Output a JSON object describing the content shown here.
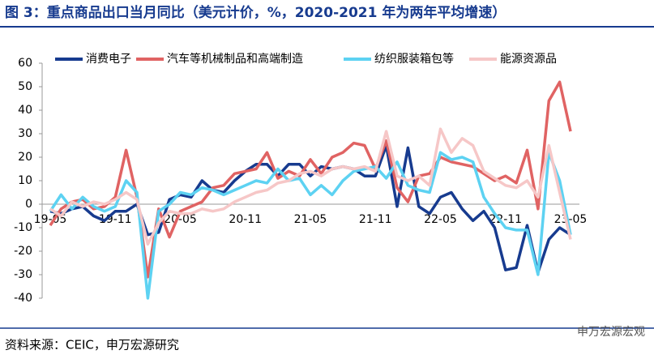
{
  "chart_data": {
    "type": "line",
    "title": "图 3：重点商品出口当月同比（美元计价，%，2020-2021 年为两年平均增速）",
    "source": "资料来源：CEIC，申万宏源研究",
    "watermark": "申万宏源宏观",
    "categories": [
      "19-05",
      null,
      null,
      null,
      null,
      null,
      "19-11",
      null,
      null,
      null,
      null,
      null,
      "20-05",
      null,
      null,
      null,
      null,
      null,
      "20-11",
      null,
      null,
      null,
      null,
      null,
      "21-05",
      null,
      null,
      null,
      null,
      null,
      "21-11",
      null,
      null,
      null,
      null,
      null,
      "22-05",
      null,
      null,
      null,
      null,
      null,
      "22-11",
      null,
      null,
      null,
      null,
      null,
      "23-05"
    ],
    "series": [
      {
        "name": "消费电子",
        "color": "#173b8f",
        "values": [
          -3,
          -4,
          -2,
          -1,
          -5,
          -7,
          -3,
          -3,
          0,
          -13,
          -12,
          2,
          4,
          3,
          10,
          6,
          5,
          10,
          14,
          17,
          17,
          12,
          17,
          17,
          12,
          16,
          15,
          16,
          15,
          12,
          12,
          25,
          -1,
          24,
          -1,
          -4,
          3,
          5,
          -2,
          -7,
          -3,
          -10,
          -28,
          -27,
          -9,
          -29,
          -15,
          -10,
          -13
        ]
      },
      {
        "name": "汽车等机械制品和高端制造",
        "color": "#e06363",
        "values": [
          -9,
          -2,
          1,
          2,
          -2,
          -1,
          3,
          23,
          3,
          -31,
          -2,
          -14,
          -3,
          -1,
          1,
          7,
          8,
          13,
          14,
          15,
          22,
          11,
          14,
          12,
          19,
          13,
          20,
          22,
          26,
          25,
          15,
          27,
          7,
          1,
          12,
          13,
          20,
          18,
          17,
          16,
          13,
          10,
          12,
          9,
          23,
          -2,
          44,
          52,
          31
        ]
      },
      {
        "name": "纺织服装箱包等",
        "color": "#5dd2f2",
        "values": [
          -3,
          4,
          -2,
          3,
          -1,
          -3,
          -1,
          10,
          5,
          -40,
          -3,
          0,
          5,
          4,
          7,
          6,
          4,
          6,
          8,
          10,
          9,
          15,
          10,
          11,
          4,
          8,
          4,
          10,
          14,
          15,
          16,
          11,
          18,
          8,
          6,
          5,
          22,
          19,
          20,
          18,
          3,
          -4,
          -10,
          -11,
          -11,
          -30,
          22,
          10,
          -13
        ]
      },
      {
        "name": "能源资源品",
        "color": "#f6c7c7",
        "values": [
          -2,
          -5,
          1,
          -1,
          1,
          0,
          2,
          5,
          2,
          -17,
          -8,
          -3,
          -4,
          -4,
          -2,
          -3,
          -2,
          1,
          3,
          5,
          6,
          9,
          10,
          13,
          14,
          12,
          15,
          16,
          15,
          16,
          14,
          31,
          12,
          10,
          12,
          8,
          32,
          22,
          28,
          25,
          14,
          11,
          8,
          7,
          10,
          3,
          25,
          5,
          -15
        ]
      }
    ],
    "ylim": [
      -40,
      60
    ],
    "yticks": [
      -40,
      -30,
      -20,
      -10,
      0,
      10,
      20,
      30,
      40,
      50,
      60
    ]
  }
}
